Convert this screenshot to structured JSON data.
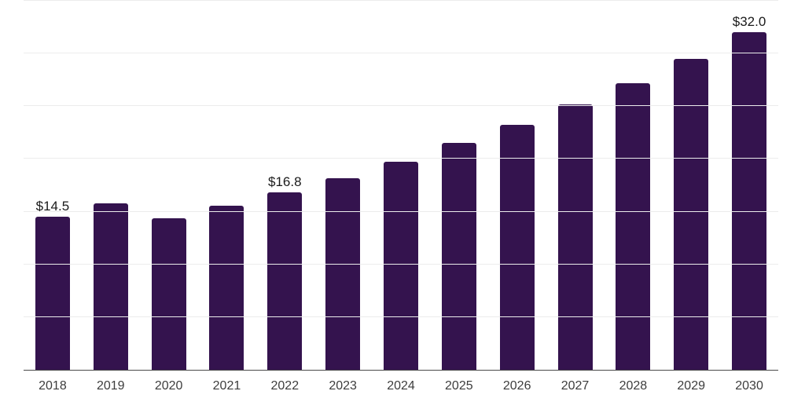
{
  "chart_data": {
    "type": "bar",
    "title": "",
    "xlabel": "",
    "ylabel": "",
    "categories": [
      "2018",
      "2019",
      "2020",
      "2021",
      "2022",
      "2023",
      "2024",
      "2025",
      "2026",
      "2027",
      "2028",
      "2029",
      "2030"
    ],
    "values": [
      14.5,
      15.8,
      14.4,
      15.6,
      16.8,
      18.2,
      19.7,
      21.5,
      23.2,
      25.2,
      27.2,
      29.5,
      32.0
    ],
    "point_labels": [
      "$14.5",
      "",
      "",
      "",
      "$16.8",
      "",
      "",
      "",
      "",
      "",
      "",
      "",
      "$32.0"
    ],
    "ylim": [
      0,
      35
    ],
    "gridline_interval": 5,
    "grid": true,
    "y_tick_labels_shown": false,
    "legend_position": "none"
  },
  "colors": {
    "bar": "#34134E",
    "gridline": "#ececec",
    "axis": "#4a4a4a",
    "point_label": "#1a1a1a",
    "tick_label": "#3d3d3d",
    "background": "#ffffff"
  }
}
